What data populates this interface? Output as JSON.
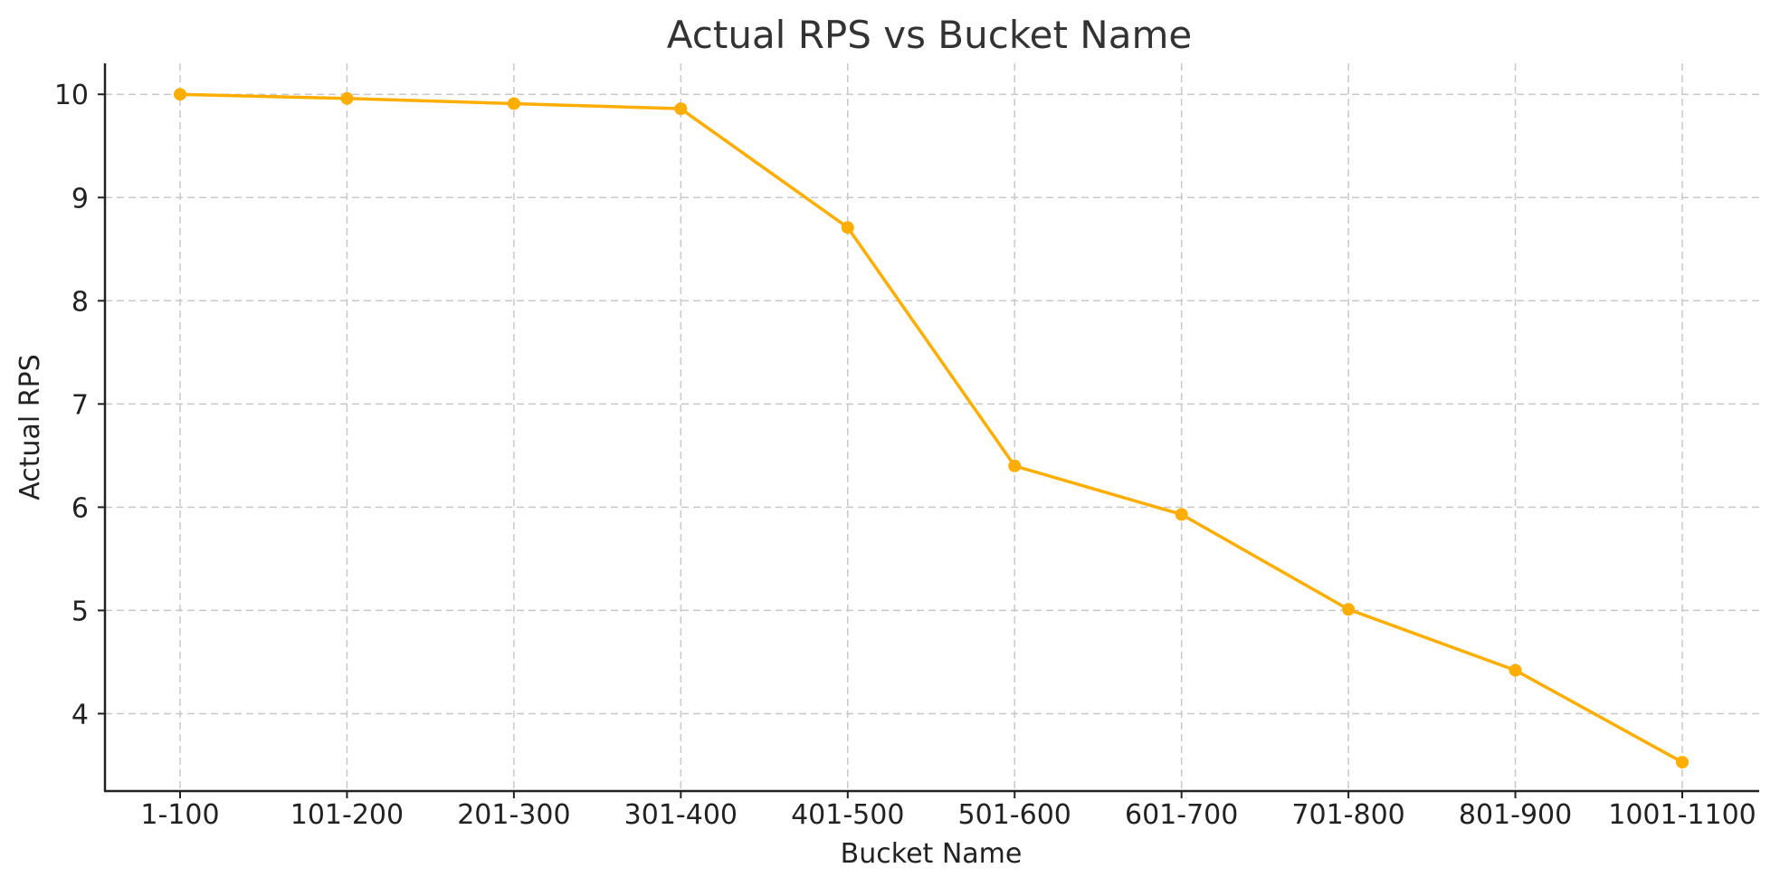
{
  "chart_data": {
    "type": "line",
    "title": "Actual RPS vs Bucket Name",
    "xlabel": "Bucket Name",
    "ylabel": "Actual RPS",
    "categories": [
      "1-100",
      "101-200",
      "201-300",
      "301-400",
      "401-500",
      "501-600",
      "601-700",
      "701-800",
      "801-900",
      "1001-1100"
    ],
    "series": [
      {
        "values": [
          10.0,
          9.96,
          9.91,
          9.86,
          8.71,
          6.4,
          5.93,
          5.01,
          4.42,
          3.53
        ]
      }
    ],
    "yticks": [
      4,
      5,
      6,
      7,
      8,
      9,
      10
    ],
    "ylim": [
      3.25,
      10.3
    ],
    "grid": true,
    "legend": "none",
    "colors": {
      "line": "#ffae00",
      "marker": "#ffae00",
      "grid": "#c8c8c8",
      "axis": "#222222",
      "title": "#333333"
    }
  }
}
